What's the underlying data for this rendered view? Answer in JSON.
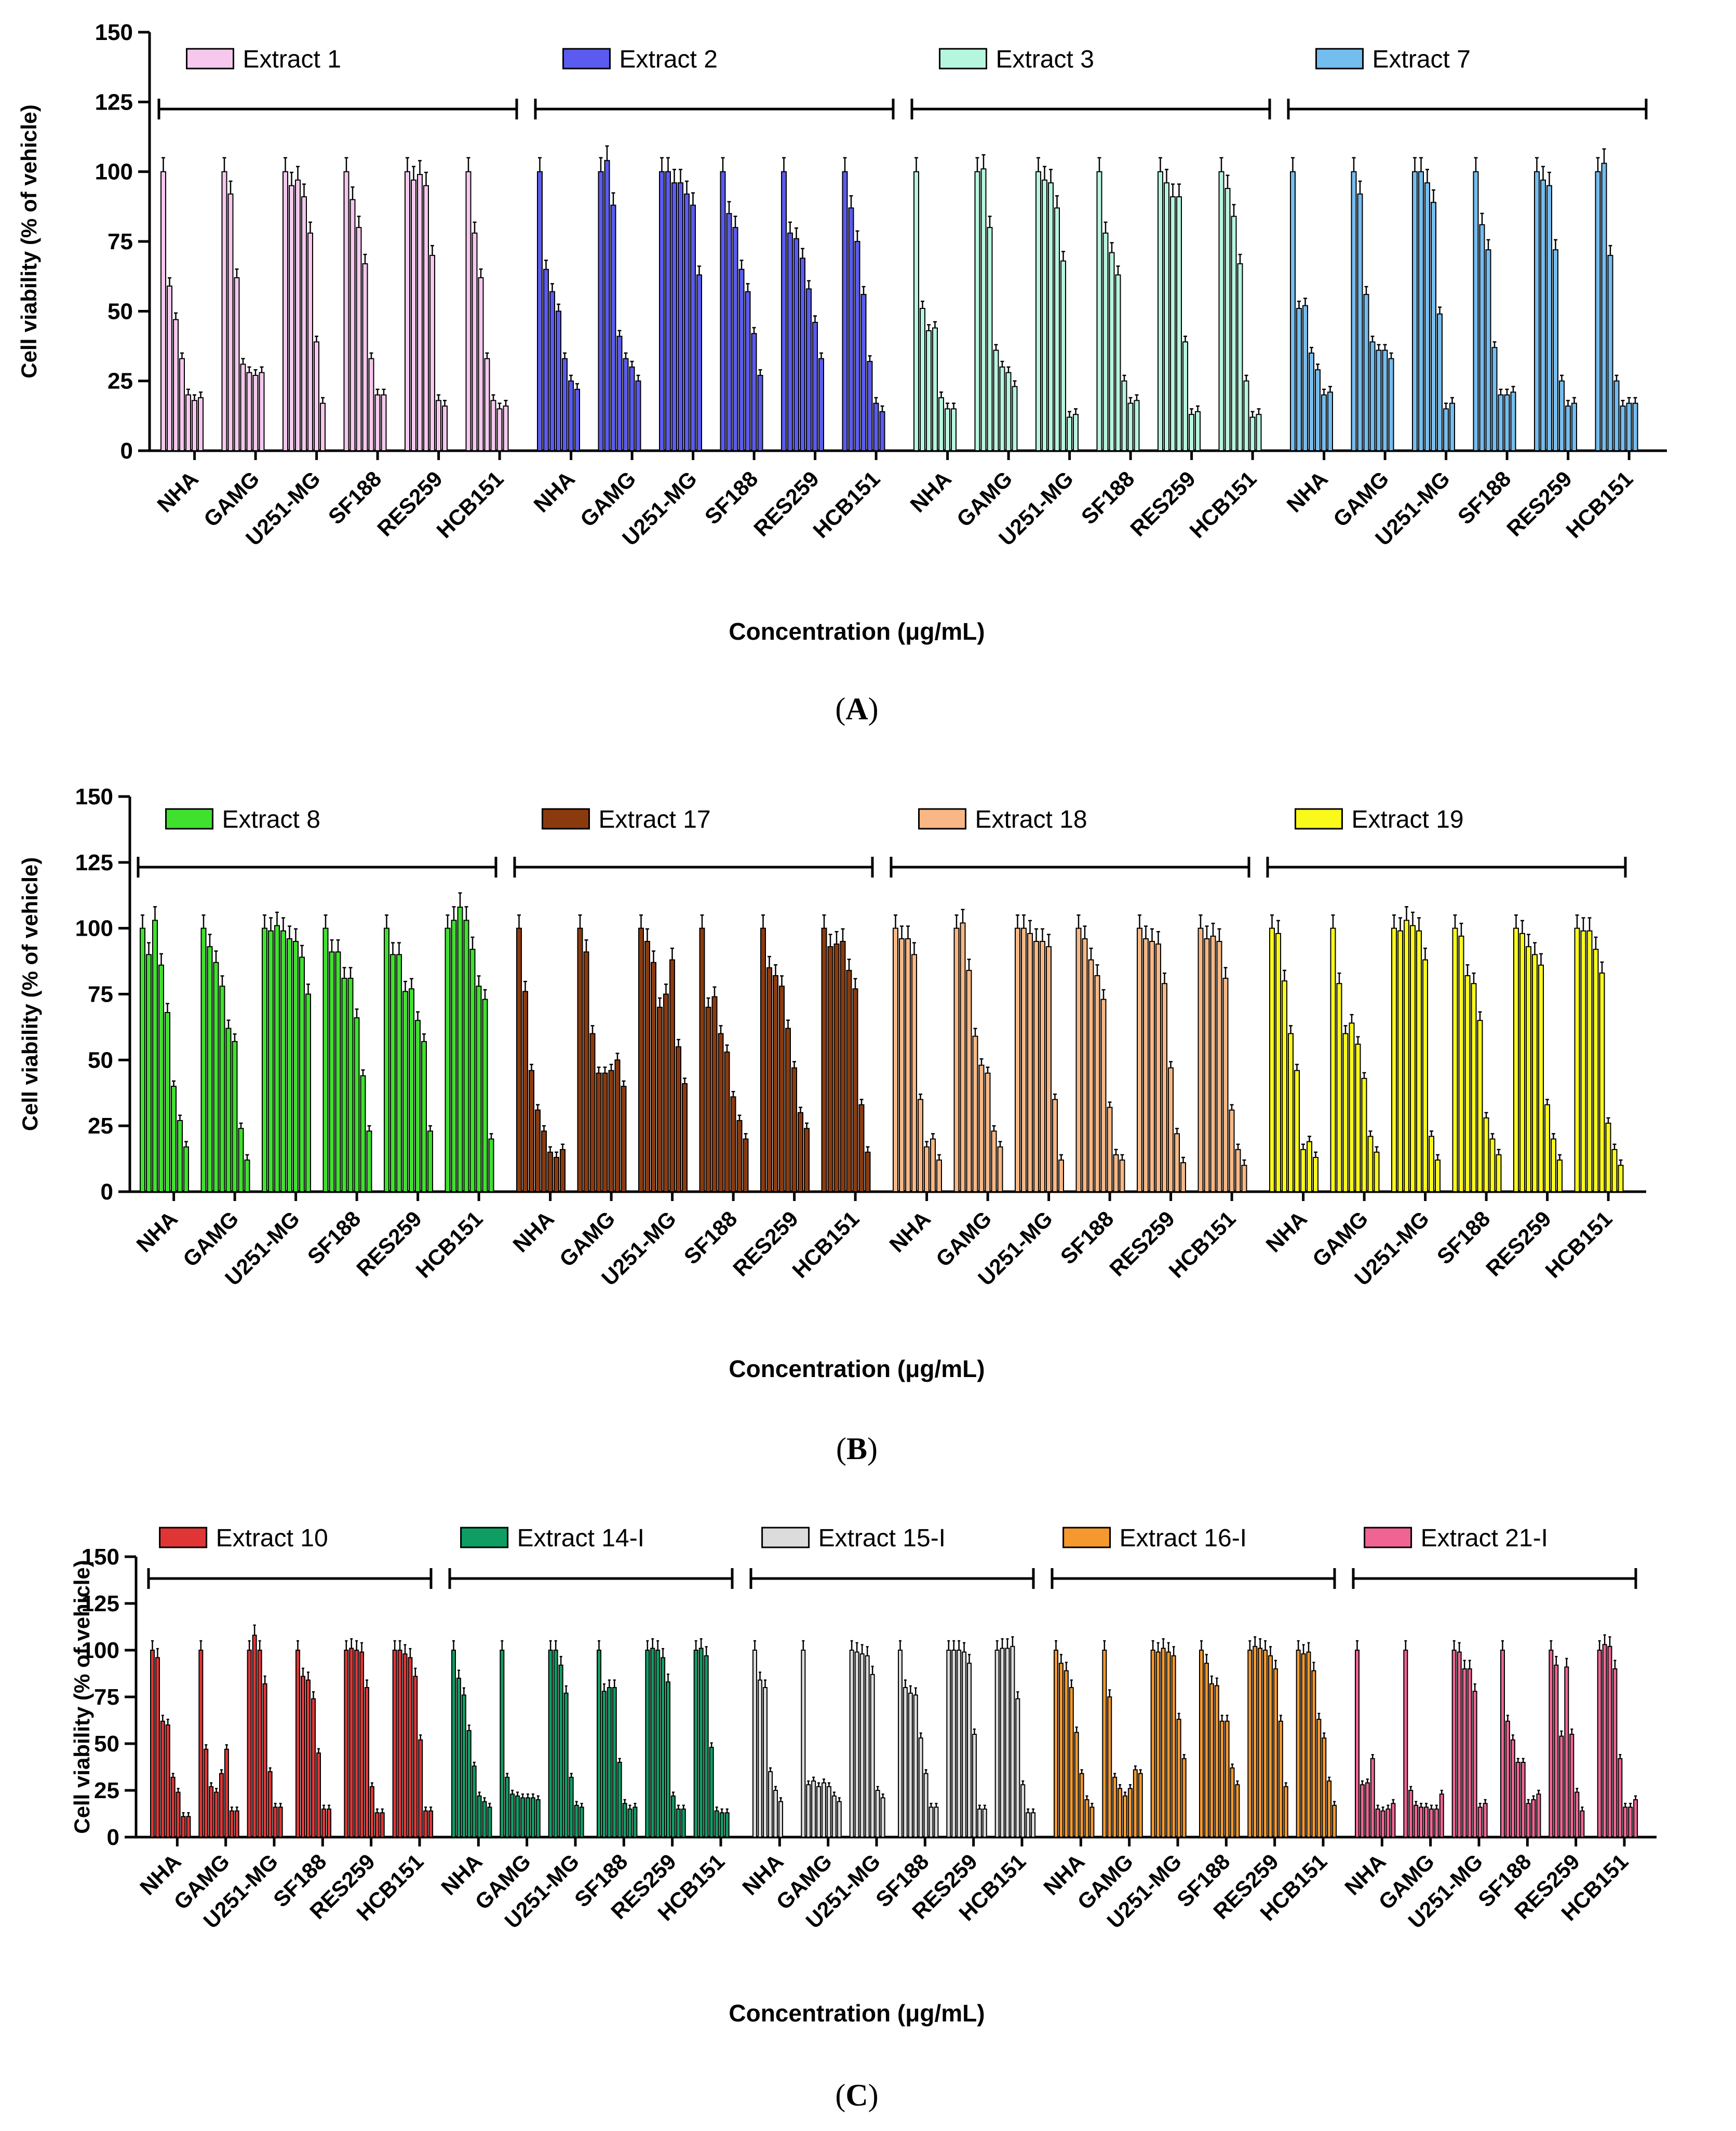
{
  "figure": {
    "panels": [
      {
        "id": "A",
        "caption_open": "(",
        "caption_letter": "A",
        "caption_close": ")"
      },
      {
        "id": "B",
        "caption_open": "(",
        "caption_letter": "B",
        "caption_close": ")"
      },
      {
        "id": "C",
        "caption_open": "(",
        "caption_letter": "C",
        "caption_close": ")"
      }
    ]
  },
  "chart_data": [
    {
      "panel": "A",
      "type": "bar",
      "ylabel": "Cell viability (% of vehicle)",
      "xlabel": "Concentration (μg/mL)",
      "ylim": [
        0,
        150
      ],
      "yticks": [
        0,
        25,
        50,
        75,
        100,
        125,
        150
      ],
      "cell_lines": [
        "NHA",
        "GAMG",
        "U251-MG",
        "SF188",
        "RES259",
        "HCB151"
      ],
      "extracts": [
        {
          "name": "Extract 1",
          "color": "#f6c8ee",
          "values": {
            "NHA": [
              100,
              59,
              47,
              33,
              20,
              18,
              19
            ],
            "GAMG": [
              100,
              92,
              62,
              31,
              28,
              27,
              28
            ],
            "U251-MG": [
              100,
              95,
              97,
              91,
              78,
              39,
              17
            ],
            "SF188": [
              100,
              90,
              80,
              67,
              33,
              20,
              20
            ],
            "RES259": [
              100,
              97,
              99,
              95,
              70,
              18,
              16
            ],
            "HCB151": [
              100,
              78,
              62,
              33,
              18,
              15,
              16
            ]
          }
        },
        {
          "name": "Extract 2",
          "color": "#5b5bef",
          "values": {
            "NHA": [
              100,
              65,
              57,
              50,
              33,
              25,
              22
            ],
            "GAMG": [
              100,
              104,
              88,
              41,
              33,
              30,
              25
            ],
            "U251-MG": [
              100,
              100,
              96,
              96,
              92,
              88,
              63
            ],
            "SF188": [
              100,
              85,
              80,
              65,
              57,
              42,
              27
            ],
            "RES259": [
              100,
              78,
              76,
              69,
              58,
              46,
              33
            ],
            "HCB151": [
              100,
              87,
              75,
              56,
              32,
              17,
              14
            ]
          }
        },
        {
          "name": "Extract 3",
          "color": "#b6f5de",
          "values": {
            "NHA": [
              100,
              51,
              43,
              44,
              19,
              15,
              15
            ],
            "GAMG": [
              100,
              101,
              80,
              36,
              30,
              28,
              23
            ],
            "U251-MG": [
              100,
              97,
              96,
              87,
              68,
              12,
              13
            ],
            "SF188": [
              100,
              78,
              71,
              63,
              25,
              17,
              18
            ],
            "RES259": [
              100,
              96,
              91,
              91,
              39,
              13,
              14
            ],
            "HCB151": [
              100,
              94,
              84,
              67,
              25,
              12,
              13
            ]
          }
        },
        {
          "name": "Extract 7",
          "color": "#74bdef",
          "values": {
            "NHA": [
              100,
              51,
              52,
              35,
              29,
              20,
              21
            ],
            "GAMG": [
              100,
              92,
              56,
              39,
              36,
              36,
              33
            ],
            "U251-MG": [
              100,
              100,
              96,
              89,
              49,
              15,
              17
            ],
            "SF188": [
              100,
              81,
              72,
              37,
              20,
              20,
              21
            ],
            "RES259": [
              100,
              97,
              95,
              72,
              25,
              16,
              17
            ],
            "HCB151": [
              100,
              103,
              70,
              25,
              16,
              17,
              17
            ]
          }
        }
      ]
    },
    {
      "panel": "B",
      "type": "bar",
      "ylabel": "Cell viability (% of vehicle)",
      "xlabel": "Concentration (μg/mL)",
      "ylim": [
        0,
        150
      ],
      "yticks": [
        0,
        25,
        50,
        75,
        100,
        125,
        150
      ],
      "cell_lines": [
        "NHA",
        "GAMG",
        "U251-MG",
        "SF188",
        "RES259",
        "HCB151"
      ],
      "extracts": [
        {
          "name": "Extract 8",
          "color": "#3fe12e",
          "values": {
            "NHA": [
              100,
              90,
              103,
              86,
              68,
              40,
              27,
              17
            ],
            "GAMG": [
              100,
              93,
              87,
              78,
              62,
              57,
              24,
              12
            ],
            "U251-MG": [
              100,
              99,
              101,
              99,
              96,
              95,
              89,
              75
            ],
            "SF188": [
              100,
              91,
              91,
              81,
              81,
              66,
              44,
              23
            ],
            "RES259": [
              100,
              90,
              90,
              76,
              77,
              65,
              57,
              23
            ],
            "HCB151": [
              100,
              103,
              108,
              103,
              92,
              78,
              73,
              20
            ]
          }
        },
        {
          "name": "Extract 17",
          "color": "#8b3a0e",
          "values": {
            "NHA": [
              100,
              76,
              46,
              31,
              23,
              15,
              13,
              16
            ],
            "GAMG": [
              100,
              91,
              60,
              45,
              45,
              46,
              50,
              40
            ],
            "U251-MG": [
              100,
              95,
              87,
              70,
              75,
              88,
              55,
              41
            ],
            "SF188": [
              100,
              70,
              74,
              60,
              53,
              36,
              27,
              20
            ],
            "RES259": [
              100,
              85,
              82,
              78,
              62,
              47,
              30,
              24
            ],
            "HCB151": [
              100,
              93,
              94,
              95,
              84,
              77,
              33,
              15
            ]
          }
        },
        {
          "name": "Extract 18",
          "color": "#f8b784",
          "values": {
            "NHA": [
              100,
              96,
              96,
              90,
              35,
              17,
              20,
              12
            ],
            "GAMG": [
              100,
              102,
              84,
              59,
              48,
              45,
              23,
              17
            ],
            "U251-MG": [
              100,
              100,
              98,
              95,
              95,
              93,
              35,
              12
            ],
            "SF188": [
              100,
              96,
              88,
              82,
              73,
              32,
              14,
              12
            ],
            "RES259": [
              100,
              96,
              95,
              94,
              79,
              47,
              22,
              11
            ],
            "HCB151": [
              100,
              96,
              97,
              95,
              81,
              31,
              16,
              10
            ]
          }
        },
        {
          "name": "Extract 19",
          "color": "#f9f91a",
          "values": {
            "NHA": [
              100,
              98,
              80,
              60,
              46,
              16,
              19,
              13
            ],
            "GAMG": [
              100,
              79,
              60,
              64,
              56,
              43,
              21,
              15
            ],
            "U251-MG": [
              100,
              99,
              103,
              101,
              99,
              88,
              21,
              12
            ],
            "SF188": [
              100,
              97,
              82,
              79,
              65,
              28,
              20,
              14
            ],
            "RES259": [
              100,
              98,
              93,
              90,
              86,
              33,
              20,
              12
            ],
            "HCB151": [
              100,
              99,
              99,
              92,
              83,
              26,
              16,
              10
            ]
          }
        }
      ]
    },
    {
      "panel": "C",
      "type": "bar",
      "ylabel": "Cell viability (% of vehicle)",
      "xlabel": "Concentration (μg/mL)",
      "ylim": [
        0,
        150
      ],
      "yticks": [
        0,
        25,
        50,
        75,
        100,
        125,
        150
      ],
      "cell_lines": [
        "NHA",
        "GAMG",
        "U251-MG",
        "SF188",
        "RES259",
        "HCB151"
      ],
      "extracts": [
        {
          "name": "Extract 10",
          "color": "#e03535",
          "values": {
            "NHA": [
              100,
              96,
              62,
              60,
              32,
              24,
              11,
              11
            ],
            "GAMG": [
              100,
              47,
              27,
              24,
              34,
              47,
              14,
              14
            ],
            "U251-MG": [
              100,
              108,
              100,
              82,
              35,
              16,
              16
            ],
            "SF188": [
              100,
              86,
              84,
              74,
              45,
              15,
              15
            ],
            "RES259": [
              100,
              101,
              100,
              99,
              80,
              27,
              13,
              13
            ],
            "HCB151": [
              100,
              100,
              98,
              96,
              86,
              52,
              14,
              14
            ]
          }
        },
        {
          "name": "Extract 14-I",
          "color": "#0e9e64",
          "values": {
            "NHA": [
              100,
              85,
              76,
              57,
              38,
              22,
              19,
              16
            ],
            "GAMG": [
              100,
              32,
              23,
              22,
              21,
              21,
              21,
              20
            ],
            "U251-MG": [
              100,
              100,
              92,
              77,
              32,
              17,
              16
            ],
            "SF188": [
              100,
              78,
              80,
              80,
              40,
              18,
              15,
              16
            ],
            "RES259": [
              100,
              101,
              100,
              96,
              83,
              22,
              15,
              15
            ],
            "HCB151": [
              100,
              101,
              97,
              48,
              14,
              13,
              13
            ]
          }
        },
        {
          "name": "Extract 15-I",
          "color": "#dcdcdc",
          "values": {
            "NHA": [
              100,
              84,
              80,
              35,
              25,
              19
            ],
            "GAMG": [
              100,
              28,
              30,
              27,
              29,
              27,
              22,
              19
            ],
            "U251-MG": [
              100,
              99,
              98,
              97,
              87,
              25,
              21
            ],
            "SF188": [
              100,
              80,
              77,
              76,
              53,
              34,
              16,
              16
            ],
            "RES259": [
              100,
              100,
              100,
              99,
              93,
              55,
              15,
              15
            ],
            "HCB151": [
              100,
              101,
              101,
              102,
              74,
              28,
              13,
              13
            ]
          }
        },
        {
          "name": "Extract 16-I",
          "color": "#f5982d",
          "values": {
            "NHA": [
              100,
              93,
              89,
              80,
              56,
              34,
              20,
              16
            ],
            "GAMG": [
              100,
              75,
              32,
              26,
              22,
              26,
              36,
              34
            ],
            "U251-MG": [
              100,
              99,
              101,
              99,
              97,
              63,
              42
            ],
            "SF188": [
              100,
              93,
              82,
              81,
              62,
              62,
              37,
              28
            ],
            "RES259": [
              100,
              102,
              101,
              100,
              97,
              90,
              62,
              27
            ],
            "HCB151": [
              100,
              98,
              99,
              89,
              63,
              53,
              30,
              17
            ]
          }
        },
        {
          "name": "Extract 21-I",
          "color": "#f06494",
          "values": {
            "NHA": [
              100,
              28,
              29,
              42,
              15,
              14,
              15,
              18
            ],
            "GAMG": [
              100,
              25,
              17,
              16,
              16,
              15,
              15,
              23
            ],
            "U251-MG": [
              100,
              99,
              90,
              90,
              78,
              16,
              18
            ],
            "SF188": [
              100,
              62,
              52,
              40,
              40,
              18,
              20,
              23
            ],
            "RES259": [
              100,
              92,
              54,
              91,
              55,
              24,
              14
            ],
            "HCB151": [
              100,
              103,
              102,
              90,
              42,
              16,
              16,
              20
            ]
          }
        }
      ]
    }
  ]
}
